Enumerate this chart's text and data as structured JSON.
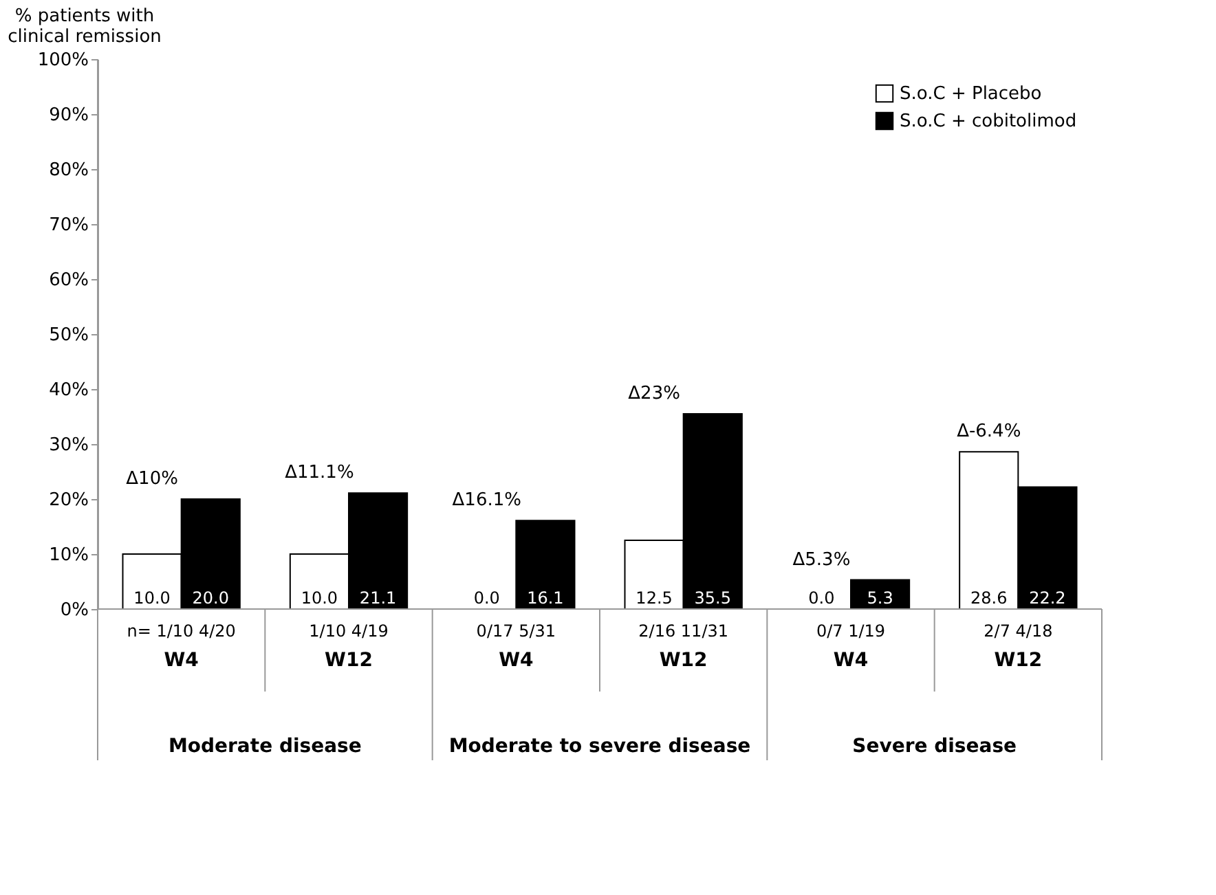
{
  "chart_data": {
    "type": "bar",
    "ylabel": "% patients with clinical remission",
    "categories": [
      "W4",
      "W12",
      "W4",
      "W12",
      "W4",
      "W12"
    ],
    "series": [
      {
        "name": "S.o.C + Placebo",
        "color": "#ffffff",
        "values": [
          10.0,
          10.0,
          0.0,
          12.5,
          0.0,
          28.6
        ],
        "value_labels": [
          "10.0",
          "10.0",
          "0.0",
          "12.5",
          "0.0",
          "28.6"
        ]
      },
      {
        "name": "S.o.C + cobitolimod",
        "color": "#000000",
        "values": [
          20.0,
          21.1,
          16.1,
          35.5,
          5.3,
          22.2
        ],
        "value_labels": [
          "20.0",
          "21.1",
          "16.1",
          "35.5",
          "5.3",
          "22.2"
        ]
      }
    ],
    "ylim": [
      0,
      100
    ],
    "yticks": [
      {
        "value": 0,
        "label": "0%"
      },
      {
        "value": 10,
        "label": "10%"
      },
      {
        "value": 20,
        "label": "20%"
      },
      {
        "value": 30,
        "label": "30%"
      },
      {
        "value": 40,
        "label": "40%"
      },
      {
        "value": 50,
        "label": "50%"
      },
      {
        "value": 60,
        "label": "60%"
      },
      {
        "value": 70,
        "label": "70%"
      },
      {
        "value": 80,
        "label": "80%"
      },
      {
        "value": 90,
        "label": "90%"
      },
      {
        "value": 100,
        "label": "100%"
      }
    ],
    "grid": false,
    "legend": "top right",
    "annotations": [
      "Δ10%",
      "Δ11.1%",
      "Δ16.1%",
      "Δ23%",
      "Δ5.3%",
      "Δ-6.4%",
      "n= 1/10 4/20",
      "1/10 4/19",
      "0/17 5/31",
      "2/16 11/31",
      "0/7 1/19",
      "2/7 4/18",
      "Moderate disease",
      "Moderate to severe disease",
      "Severe disease"
    ]
  }
}
